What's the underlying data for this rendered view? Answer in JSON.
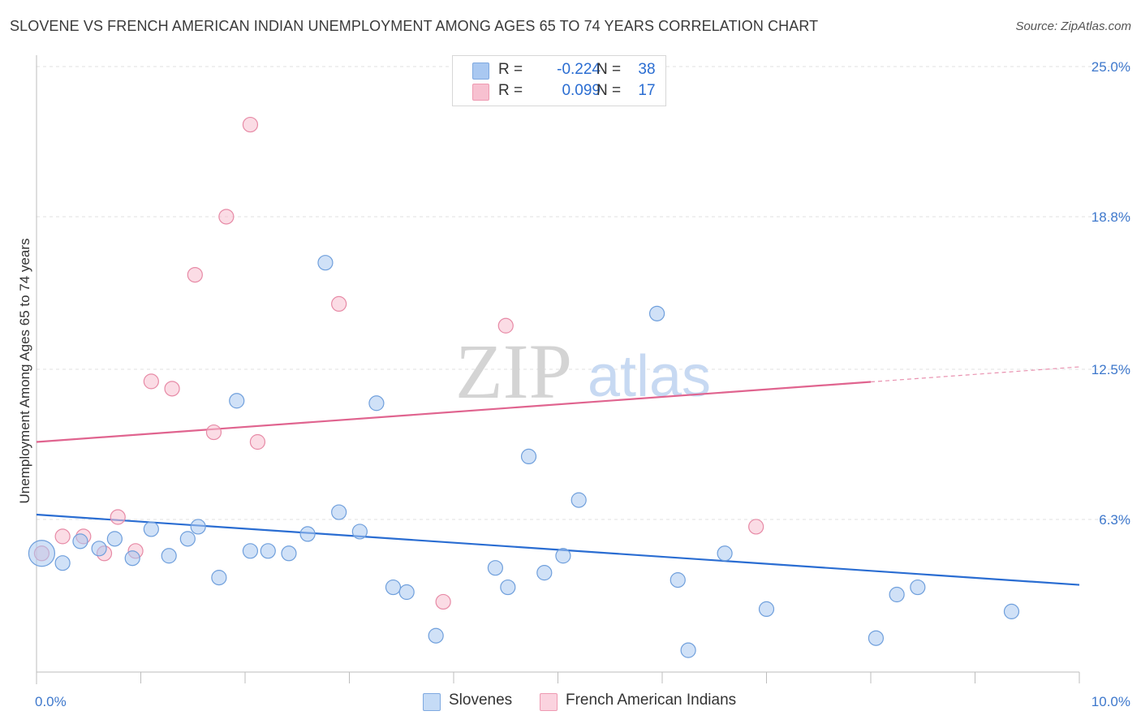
{
  "title": "SLOVENE VS FRENCH AMERICAN INDIAN UNEMPLOYMENT AMONG AGES 65 TO 74 YEARS CORRELATION CHART",
  "source": "Source: ZipAtlas.com",
  "watermark": {
    "zip": "ZIP",
    "atlas": "atlas"
  },
  "legend": {
    "rows": [
      {
        "r_label": "R =",
        "r_value": "-0.224",
        "n_label": "N =",
        "n_value": "38",
        "color": "#a9c8f1",
        "border": "#7fa9e0"
      },
      {
        "r_label": "R =",
        "r_value": "0.099",
        "n_label": "N =",
        "n_value": "17",
        "color": "#f7c0d0",
        "border": "#ee9ab2"
      }
    ]
  },
  "bottom_legend": [
    {
      "label": "Slovenes",
      "color": "#c5dbf6",
      "border": "#7fa9e0"
    },
    {
      "label": "French American Indians",
      "color": "#fbd3df",
      "border": "#ee9ab2"
    }
  ],
  "colors": {
    "blue_fill": "#a9c8f1",
    "blue_stroke": "#6f9fdc",
    "blue_line": "#2a6dd2",
    "pink_fill": "#f7c0d0",
    "pink_stroke": "#e78aa6",
    "pink_line": "#e0648f",
    "axis_label": "#3e78cc",
    "grid": "#e0e0e0"
  },
  "chart_data": {
    "type": "scatter",
    "title": "SLOVENE VS FRENCH AMERICAN INDIAN UNEMPLOYMENT AMONG AGES 65 TO 74 YEARS CORRELATION CHART",
    "xlabel": "",
    "ylabel": "Unemployment Among Ages 65 to 74 years",
    "xlim": [
      0,
      10
    ],
    "ylim": [
      0,
      25.3
    ],
    "x_tick_labels": [
      {
        "value": 0,
        "label": "0.0%"
      },
      {
        "value": 10,
        "label": "10.0%"
      }
    ],
    "x_minor_ticks": [
      1,
      2,
      3,
      4,
      5,
      6,
      7,
      8,
      9,
      10
    ],
    "y_ticks": [
      {
        "value": 6.3,
        "label": "6.3%"
      },
      {
        "value": 12.5,
        "label": "12.5%"
      },
      {
        "value": 18.8,
        "label": "18.8%"
      },
      {
        "value": 25.0,
        "label": "25.0%"
      }
    ],
    "series": [
      {
        "name": "Slovenes",
        "r": -0.224,
        "n": 38,
        "trend": {
          "x0": 0,
          "y0": 6.5,
          "x1": 10,
          "y1": 3.6,
          "solid_until": 10
        },
        "points": [
          [
            0.05,
            4.9,
            16
          ],
          [
            0.25,
            4.5,
            9
          ],
          [
            0.42,
            5.4,
            9
          ],
          [
            0.6,
            5.1,
            9
          ],
          [
            0.75,
            5.5,
            9
          ],
          [
            0.92,
            4.7,
            9
          ],
          [
            1.1,
            5.9,
            9
          ],
          [
            1.27,
            4.8,
            9
          ],
          [
            1.45,
            5.5,
            9
          ],
          [
            1.55,
            6.0,
            9
          ],
          [
            1.75,
            3.9,
            9
          ],
          [
            1.92,
            11.2,
            9
          ],
          [
            2.05,
            5.0,
            9
          ],
          [
            2.22,
            5.0,
            9
          ],
          [
            2.42,
            4.9,
            9
          ],
          [
            2.6,
            5.7,
            9
          ],
          [
            2.77,
            16.9,
            9
          ],
          [
            2.9,
            6.6,
            9
          ],
          [
            3.1,
            5.8,
            9
          ],
          [
            3.26,
            11.1,
            9
          ],
          [
            3.42,
            3.5,
            9
          ],
          [
            3.55,
            3.3,
            9
          ],
          [
            3.83,
            1.5,
            9
          ],
          [
            4.4,
            4.3,
            9
          ],
          [
            4.52,
            3.5,
            9
          ],
          [
            4.72,
            8.9,
            9
          ],
          [
            4.87,
            4.1,
            9
          ],
          [
            5.05,
            4.8,
            9
          ],
          [
            5.2,
            7.1,
            9
          ],
          [
            5.95,
            14.8,
            9
          ],
          [
            6.15,
            3.8,
            9
          ],
          [
            6.25,
            0.9,
            9
          ],
          [
            6.6,
            4.9,
            9
          ],
          [
            7.0,
            2.6,
            9
          ],
          [
            8.05,
            1.4,
            9
          ],
          [
            8.25,
            3.2,
            9
          ],
          [
            8.45,
            3.5,
            9
          ],
          [
            9.35,
            2.5,
            9
          ]
        ]
      },
      {
        "name": "French American Indians",
        "r": 0.099,
        "n": 17,
        "trend": {
          "x0": 0,
          "y0": 9.5,
          "x1": 10,
          "y1": 12.6,
          "solid_until": 8.0
        },
        "points": [
          [
            0.05,
            4.9,
            9
          ],
          [
            0.25,
            5.6,
            9
          ],
          [
            0.45,
            5.6,
            9
          ],
          [
            0.65,
            4.9,
            9
          ],
          [
            0.78,
            6.4,
            9
          ],
          [
            0.95,
            5.0,
            9
          ],
          [
            1.1,
            12.0,
            9
          ],
          [
            1.3,
            11.7,
            9
          ],
          [
            1.52,
            16.4,
            9
          ],
          [
            1.7,
            9.9,
            9
          ],
          [
            1.82,
            18.8,
            9
          ],
          [
            2.05,
            22.6,
            9
          ],
          [
            2.12,
            9.5,
            9
          ],
          [
            2.9,
            15.2,
            9
          ],
          [
            3.9,
            2.9,
            9
          ],
          [
            4.5,
            14.3,
            9
          ],
          [
            6.9,
            6.0,
            9
          ]
        ]
      }
    ]
  }
}
